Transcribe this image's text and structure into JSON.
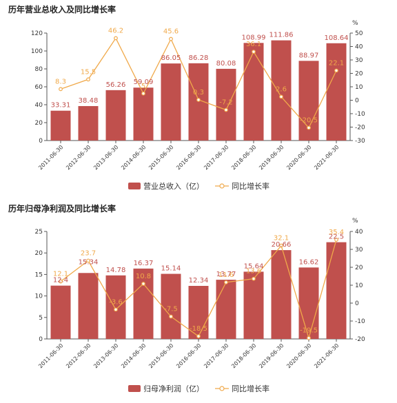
{
  "colors": {
    "bar": "#c0504d",
    "line": "#f0a94a",
    "axis": "#555555"
  },
  "chart_data": [
    {
      "type": "bar",
      "title": "历年营业总收入及同比增长率",
      "categories": [
        "2011-06-30",
        "2012-06-30",
        "2013-06-30",
        "2014-06-30",
        "2015-06-30",
        "2016-06-30",
        "2017-06-30",
        "2018-06-30",
        "2019-06-30",
        "2020-06-30",
        "2021-06-30"
      ],
      "series": [
        {
          "name": "营业总收入（亿）",
          "type": "bar",
          "axis": "left",
          "values": [
            33.31,
            38.48,
            56.26,
            59.09,
            86.05,
            86.28,
            80.08,
            108.99,
            111.86,
            88.97,
            108.64
          ],
          "labels": [
            "33.31",
            "38.48",
            "56.26",
            "59.09",
            "86.05",
            "86.28",
            "80.08",
            "108.99",
            "111.86",
            "88.97",
            "108.64"
          ]
        },
        {
          "name": "同比增长率",
          "type": "line",
          "axis": "right",
          "values": [
            8.3,
            15.5,
            46.2,
            5.0,
            45.6,
            0.3,
            -7.2,
            36.1,
            2.6,
            -20.5,
            22.1
          ],
          "labels": [
            "8.3",
            "15.5",
            "46.2",
            "5",
            "45.6",
            "0.3",
            "-7.2",
            "36.1",
            "2.6",
            "-20.5",
            "22.1"
          ]
        }
      ],
      "y_left": {
        "min": 0,
        "max": 120,
        "ticks": [
          0,
          20,
          40,
          60,
          80,
          100,
          120
        ]
      },
      "y_right": {
        "min": -30,
        "max": 50,
        "ticks": [
          -30,
          -20,
          -10,
          0,
          10,
          20,
          30,
          40,
          50
        ],
        "unit": "%"
      },
      "legend": {
        "position": "bottom",
        "bar_label": "营业总收入（亿）",
        "line_label": "同比增长率"
      },
      "grid": false
    },
    {
      "type": "bar",
      "title": "历年归母净利润及同比增长率",
      "categories": [
        "2011-06-30",
        "2012-06-30",
        "2013-06-30",
        "2014-06-30",
        "2015-06-30",
        "2016-06-30",
        "2017-06-30",
        "2018-06-30",
        "2019-06-30",
        "2020-06-30",
        "2021-06-30"
      ],
      "series": [
        {
          "name": "归母净利润（亿）",
          "type": "bar",
          "axis": "left",
          "values": [
            12.4,
            15.34,
            14.78,
            16.37,
            15.14,
            12.34,
            13.77,
            15.64,
            20.66,
            16.62,
            22.5
          ],
          "labels": [
            "12.4",
            "15.34",
            "14.78",
            "16.37",
            "15.14",
            "12.34",
            "13.77",
            "15.64",
            "20.66",
            "16.62",
            "22.5"
          ]
        },
        {
          "name": "同比增长率",
          "type": "line",
          "axis": "right",
          "values": [
            12.1,
            23.7,
            -3.6,
            10.8,
            -7.5,
            -18.5,
            11.6,
            13.6,
            32.1,
            -19.5,
            35.4
          ],
          "labels": [
            "12.1",
            "23.7",
            "-3.6",
            "10.8",
            "-7.5",
            "-18.5",
            "11.6",
            "13.6",
            "32.1",
            "-19.5",
            "35.4"
          ]
        }
      ],
      "y_left": {
        "min": 0,
        "max": 25,
        "ticks": [
          0,
          5,
          10,
          15,
          20,
          25
        ]
      },
      "y_right": {
        "min": -20,
        "max": 40,
        "ticks": [
          -20,
          -10,
          0,
          10,
          20,
          30,
          40
        ],
        "unit": "%"
      },
      "legend": {
        "position": "bottom",
        "bar_label": "归母净利润（亿）",
        "line_label": "同比增长率"
      },
      "grid": false
    }
  ]
}
